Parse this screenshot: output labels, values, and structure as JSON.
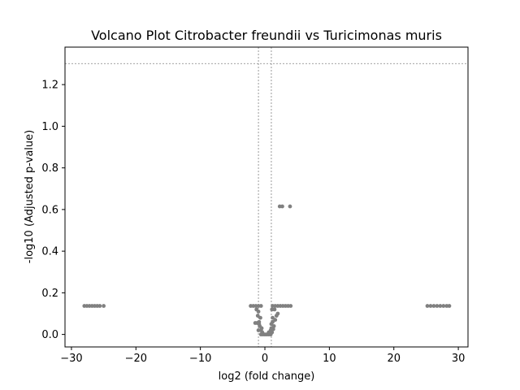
{
  "chart_data": {
    "type": "scatter",
    "title": "Volcano Plot Citrobacter freundii vs Turicimonas muris",
    "xlabel": "log2 (fold change)",
    "ylabel": "-log10 (Adjusted p-value)",
    "xlim": [
      -31,
      31.5
    ],
    "ylim": [
      -0.06,
      1.38
    ],
    "xticks": [
      -30,
      -20,
      -10,
      0,
      10,
      20,
      30
    ],
    "xtick_labels": [
      "−30",
      "−20",
      "−10",
      "0",
      "10",
      "20",
      "30"
    ],
    "yticks": [
      0.0,
      0.2,
      0.4,
      0.6,
      0.8,
      1.0,
      1.2
    ],
    "ytick_labels": [
      "0.0",
      "0.2",
      "0.4",
      "0.6",
      "0.8",
      "1.0",
      "1.2"
    ],
    "grid": false,
    "thresholds": {
      "fold_change_lines_x": [
        -1,
        1
      ],
      "pvalue_line_y": 1.301
    },
    "point_color": "#808080",
    "threshold_line_color": "#808080",
    "points": [
      {
        "x": -28.0,
        "y": 0.137
      },
      {
        "x": -27.6,
        "y": 0.137
      },
      {
        "x": -27.2,
        "y": 0.137
      },
      {
        "x": -26.8,
        "y": 0.137
      },
      {
        "x": -26.4,
        "y": 0.137
      },
      {
        "x": -26.0,
        "y": 0.137
      },
      {
        "x": -25.6,
        "y": 0.137
      },
      {
        "x": -25.0,
        "y": 0.137
      },
      {
        "x": 25.2,
        "y": 0.137
      },
      {
        "x": 25.7,
        "y": 0.137
      },
      {
        "x": 26.2,
        "y": 0.137
      },
      {
        "x": 26.7,
        "y": 0.137
      },
      {
        "x": 27.2,
        "y": 0.137
      },
      {
        "x": 27.7,
        "y": 0.137
      },
      {
        "x": 28.2,
        "y": 0.137
      },
      {
        "x": 28.6,
        "y": 0.137
      },
      {
        "x": -2.2,
        "y": 0.137
      },
      {
        "x": -1.8,
        "y": 0.137
      },
      {
        "x": -1.4,
        "y": 0.137
      },
      {
        "x": -1.0,
        "y": 0.137
      },
      {
        "x": -0.6,
        "y": 0.137
      },
      {
        "x": 1.2,
        "y": 0.137
      },
      {
        "x": 1.6,
        "y": 0.137
      },
      {
        "x": 2.0,
        "y": 0.137
      },
      {
        "x": 2.4,
        "y": 0.137
      },
      {
        "x": 2.8,
        "y": 0.137
      },
      {
        "x": 3.2,
        "y": 0.137
      },
      {
        "x": 3.6,
        "y": 0.137
      },
      {
        "x": 4.0,
        "y": 0.137
      },
      {
        "x": -1.3,
        "y": 0.12
      },
      {
        "x": -1.0,
        "y": 0.11
      },
      {
        "x": 1.1,
        "y": 0.12
      },
      {
        "x": 1.5,
        "y": 0.12
      },
      {
        "x": 2.0,
        "y": 0.1
      },
      {
        "x": 1.8,
        "y": 0.09
      },
      {
        "x": -1.1,
        "y": 0.09
      },
      {
        "x": -0.7,
        "y": 0.08
      },
      {
        "x": 1.2,
        "y": 0.08
      },
      {
        "x": 1.6,
        "y": 0.07
      },
      {
        "x": -0.9,
        "y": 0.06
      },
      {
        "x": 1.2,
        "y": 0.06
      },
      {
        "x": -1.2,
        "y": 0.055
      },
      {
        "x": -0.9,
        "y": 0.05
      },
      {
        "x": -1.5,
        "y": 0.055
      },
      {
        "x": 1.0,
        "y": 0.05
      },
      {
        "x": 1.4,
        "y": 0.04
      },
      {
        "x": -0.8,
        "y": 0.04
      },
      {
        "x": -0.5,
        "y": 0.03
      },
      {
        "x": 1.0,
        "y": 0.03
      },
      {
        "x": 1.3,
        "y": 0.025
      },
      {
        "x": -1.0,
        "y": 0.02
      },
      {
        "x": -0.6,
        "y": 0.02
      },
      {
        "x": 0.9,
        "y": 0.02
      },
      {
        "x": -0.4,
        "y": 0.01
      },
      {
        "x": 0.6,
        "y": 0.01
      },
      {
        "x": 1.1,
        "y": 0.01
      },
      {
        "x": -0.3,
        "y": 0.0
      },
      {
        "x": 0.0,
        "y": 0.0
      },
      {
        "x": 0.3,
        "y": 0.0
      },
      {
        "x": 0.6,
        "y": 0.0
      },
      {
        "x": 0.9,
        "y": 0.0
      },
      {
        "x": -0.6,
        "y": 0.0
      },
      {
        "x": 2.3,
        "y": 0.615
      },
      {
        "x": 2.7,
        "y": 0.615
      },
      {
        "x": 3.9,
        "y": 0.615
      }
    ]
  }
}
